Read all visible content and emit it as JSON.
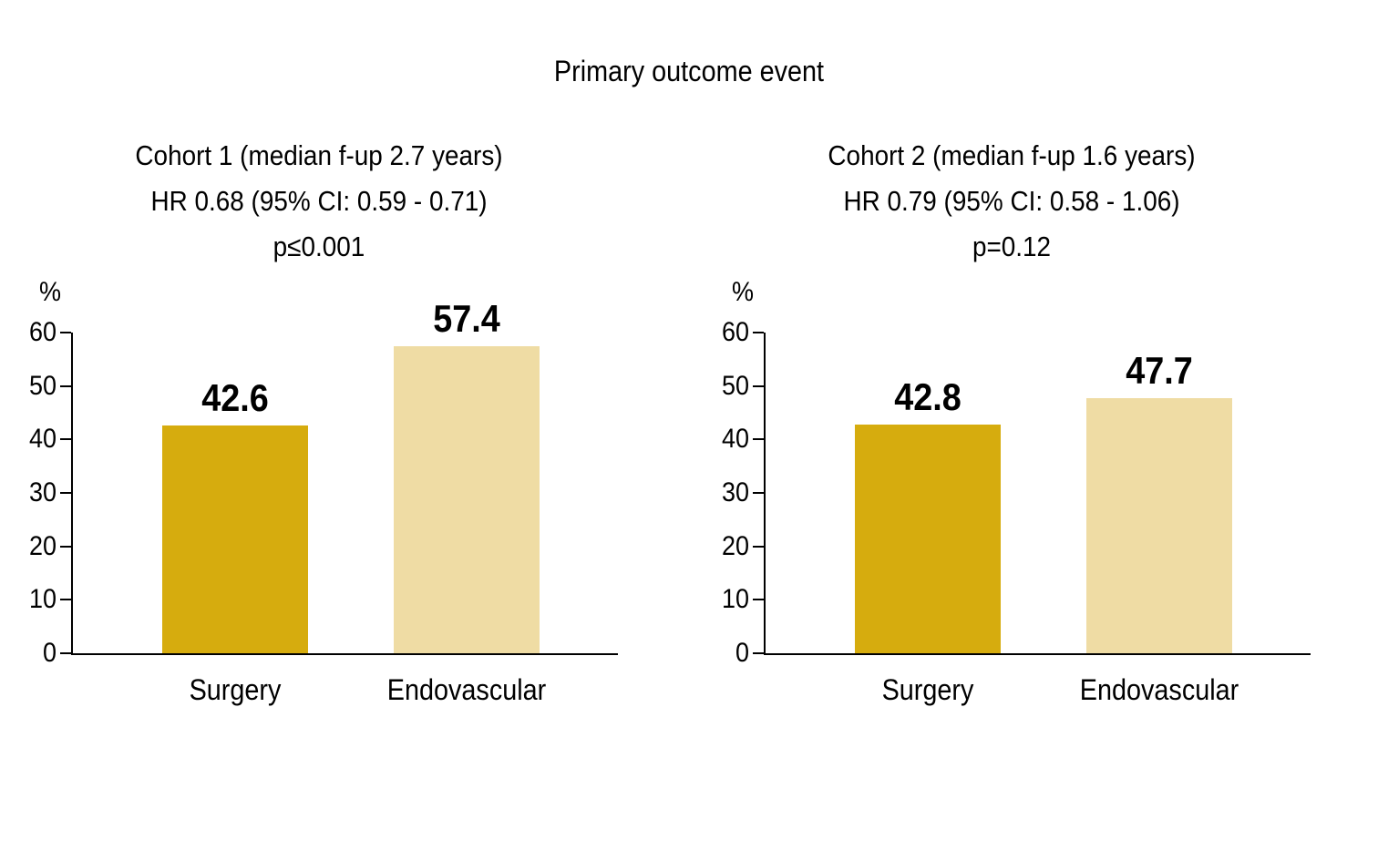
{
  "title": "Primary outcome event",
  "colors": {
    "surgery_bar": "#D6AC0E",
    "endovascular_bar": "#EFDCA4",
    "axis": "#000000",
    "text": "#000000"
  },
  "chart_data": [
    {
      "type": "bar",
      "header_lines": [
        "Cohort 1 (median f-up 2.7 years)",
        "HR 0.68 (95% CI: 0.59 - 0.71)",
        "p≤0.001"
      ],
      "cohort": "Cohort 1",
      "median_follow_up_years": 2.7,
      "hazard_ratio": 0.68,
      "ci_95": "0.59 - 0.71",
      "p_value": "p≤0.001",
      "categories": [
        "Surgery",
        "Endovascular"
      ],
      "values": [
        42.6,
        57.4
      ],
      "bar_colors": [
        "#D6AC0E",
        "#EFDCA4"
      ],
      "ylabel": "%",
      "ylim": [
        0,
        60
      ],
      "yticks": [
        0,
        10,
        20,
        30,
        40,
        50,
        60
      ],
      "grid": false,
      "legend": "none"
    },
    {
      "type": "bar",
      "header_lines": [
        "Cohort 2 (median f-up 1.6 years)",
        "HR 0.79 (95% CI: 0.58 - 1.06)",
        "p=0.12"
      ],
      "cohort": "Cohort 2",
      "median_follow_up_years": 1.6,
      "hazard_ratio": 0.79,
      "ci_95": "0.58 - 1.06",
      "p_value": "p=0.12",
      "categories": [
        "Surgery",
        "Endovascular"
      ],
      "values": [
        42.8,
        47.7
      ],
      "bar_colors": [
        "#D6AC0E",
        "#EFDCA4"
      ],
      "ylabel": "%",
      "ylim": [
        0,
        60
      ],
      "yticks": [
        0,
        10,
        20,
        30,
        40,
        50,
        60
      ],
      "grid": false,
      "legend": "none"
    }
  ]
}
